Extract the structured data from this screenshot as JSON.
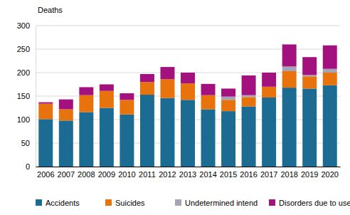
{
  "chart_data": {
    "type": "bar",
    "stacked": true,
    "y_label": "Deaths",
    "categories": [
      "2006",
      "2007",
      "2008",
      "2009",
      "2010",
      "2011",
      "2012",
      "2013",
      "2014",
      "2015",
      "2016",
      "2017",
      "2018",
      "2019",
      "2020"
    ],
    "series": [
      {
        "name": "Accidents",
        "color": "#1b6b93",
        "values": [
          101,
          98,
          116,
          125,
          111,
          153,
          146,
          142,
          122,
          118,
          128,
          147,
          168,
          166,
          173
        ]
      },
      {
        "name": "Suicides",
        "color": "#e8720c",
        "values": [
          33,
          24,
          36,
          36,
          31,
          27,
          40,
          35,
          30,
          24,
          20,
          23,
          35,
          26,
          27
        ]
      },
      {
        "name": "Undetermined intend",
        "color": "#a5a3b4",
        "values": [
          0,
          0,
          0,
          0,
          0,
          0,
          0,
          0,
          0,
          7,
          4,
          0,
          10,
          3,
          8
        ]
      },
      {
        "name": "Disorders due to use",
        "color": "#a3117f",
        "values": [
          3,
          21,
          17,
          14,
          14,
          17,
          26,
          23,
          24,
          17,
          42,
          30,
          47,
          38,
          50
        ]
      }
    ],
    "ylim": [
      0,
      300
    ],
    "yticks": [
      0,
      50,
      100,
      150,
      200,
      250,
      300
    ],
    "grid": true,
    "legend": "bottom"
  }
}
